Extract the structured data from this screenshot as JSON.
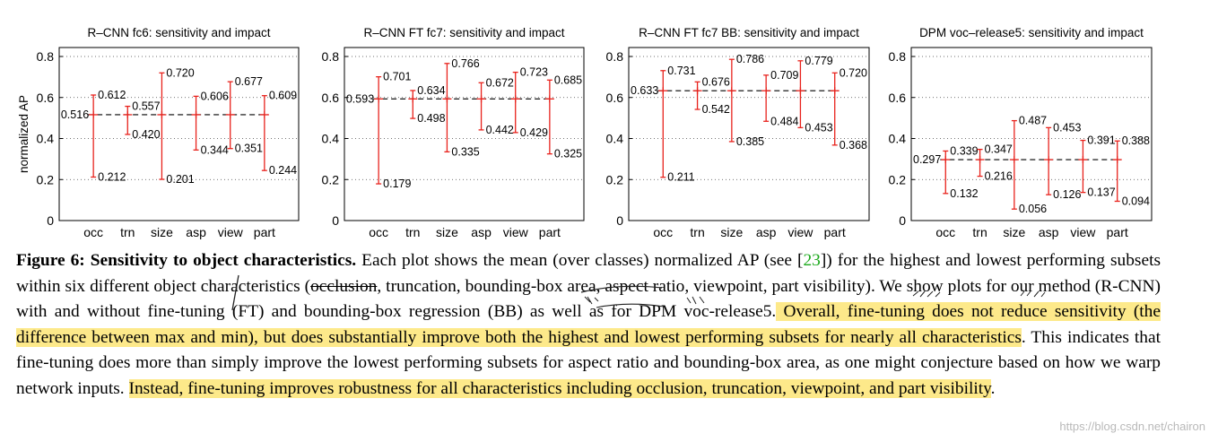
{
  "chart_data": [
    {
      "type": "errorbar",
      "title": "R–CNN fc6: sensitivity and impact",
      "ylabel": "normalized AP",
      "ylim": [
        0,
        0.8
      ],
      "yticks": [
        "0",
        "0.2",
        "0.4",
        "0.6",
        "0.8"
      ],
      "categories": [
        "occ",
        "trn",
        "size",
        "asp",
        "view",
        "part"
      ],
      "mean": 0.516,
      "mean_label": "0.516",
      "max": [
        0.612,
        0.557,
        0.72,
        0.606,
        0.677,
        0.609
      ],
      "min": [
        0.212,
        0.42,
        0.201,
        0.344,
        0.351,
        0.244
      ],
      "max_labels": [
        "0.612",
        "0.557",
        "0.720",
        "0.606",
        "0.677",
        "0.609"
      ],
      "min_labels": [
        "0.212",
        "0.420",
        "0.201",
        "0.344",
        "0.351",
        "0.244"
      ]
    },
    {
      "type": "errorbar",
      "title": "R–CNN FT fc7: sensitivity and impact",
      "ylabel": "",
      "ylim": [
        0,
        0.8
      ],
      "yticks": [
        "0",
        "0.2",
        "0.4",
        "0.6",
        "0.8"
      ],
      "categories": [
        "occ",
        "trn",
        "size",
        "asp",
        "view",
        "part"
      ],
      "mean": 0.593,
      "mean_label": "0.593",
      "max": [
        0.701,
        0.634,
        0.766,
        0.672,
        0.723,
        0.685
      ],
      "min": [
        0.179,
        0.498,
        0.335,
        0.442,
        0.429,
        0.325
      ],
      "max_labels": [
        "0.701",
        "0.634",
        "0.766",
        "0.672",
        "0.723",
        "0.685"
      ],
      "min_labels": [
        "0.179",
        "0.498",
        "0.335",
        "0.442",
        "0.429",
        "0.325"
      ]
    },
    {
      "type": "errorbar",
      "title": "R–CNN FT fc7 BB: sensitivity and impact",
      "ylabel": "",
      "ylim": [
        0,
        0.8
      ],
      "yticks": [
        "0",
        "0.2",
        "0.4",
        "0.6",
        "0.8"
      ],
      "categories": [
        "occ",
        "trn",
        "size",
        "asp",
        "view",
        "part"
      ],
      "mean": 0.633,
      "mean_label": "0.633",
      "max": [
        0.731,
        0.676,
        0.786,
        0.709,
        0.779,
        0.72
      ],
      "min": [
        0.211,
        0.542,
        0.385,
        0.484,
        0.453,
        0.368
      ],
      "max_labels": [
        "0.731",
        "0.676",
        "0.786",
        "0.709",
        "0.779",
        "0.720"
      ],
      "min_labels": [
        "0.211",
        "0.542",
        "0.385",
        "0.484",
        "0.453",
        "0.368"
      ]
    },
    {
      "type": "errorbar",
      "title": "DPM voc–release5: sensitivity and impact",
      "ylabel": "",
      "ylim": [
        0,
        0.8
      ],
      "yticks": [
        "0",
        "0.2",
        "0.4",
        "0.6",
        "0.8"
      ],
      "categories": [
        "occ",
        "trn",
        "size",
        "asp",
        "view",
        "part"
      ],
      "mean": 0.297,
      "mean_label": "0.297",
      "max": [
        0.339,
        0.347,
        0.487,
        0.453,
        0.391,
        0.388
      ],
      "min": [
        0.132,
        0.216,
        0.056,
        0.126,
        0.137,
        0.094
      ],
      "max_labels": [
        "0.339",
        "0.347",
        "0.487",
        "0.453",
        "0.391",
        "0.388"
      ],
      "min_labels": [
        "0.132",
        "0.216",
        "0.056",
        "0.126",
        "0.137",
        "0.094"
      ]
    }
  ],
  "caption": {
    "lead": "Figure 6: Sensitivity to object characteristics.",
    "p1": " Each plot shows the mean (over classes) normalized AP (see [",
    "ref": "23",
    "p2": "]) for the highest and lowest performing subsets within six different object characteristics (",
    "occlusion": "occlusion",
    "p3": ", truncation, bounding-box area, aspect ratio, viewpoint, part visibility). We show plots for our method (R-CNN) with and without fine-tuning (FT) and bounding-box regression (BB) as well as for DPM voc-release5.",
    "hl1": " Overall, fine-tuning does not reduce sensitivity (the difference between max and min), but does substantially improve both the highest and lowest performing subsets for nearly all characteristics",
    "p4": ". This indicates that fine-tuning does more than simply improve the lowest performing subsets for aspect ratio and bounding-box area, as one might conjecture based on how we warp network inputs. ",
    "hl2": "Instead, fine-tuning improves robustness for all characteristics including occlusion, truncation, viewpoint, and part visibility",
    "p5": "."
  },
  "watermark": "https://blog.csdn.net/chairon"
}
